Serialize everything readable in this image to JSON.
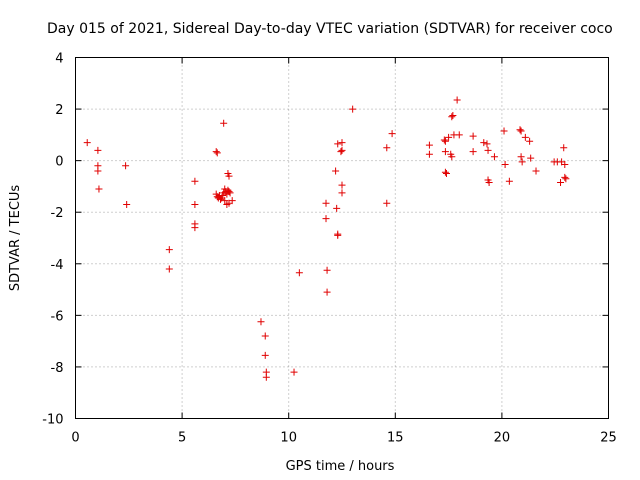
{
  "chart_data": {
    "type": "scatter",
    "title": "Day 015 of 2021, Sidereal Day-to-day VTEC variation (SDTVAR) for receiver coco",
    "xlabel": "GPS time / hours",
    "ylabel": "SDTVAR / TECUs",
    "xlim": [
      0,
      25
    ],
    "ylim": [
      -10,
      4
    ],
    "xticks": [
      0,
      5,
      10,
      15,
      20,
      25
    ],
    "yticks": [
      -10,
      -8,
      -6,
      -4,
      -2,
      0,
      2,
      4
    ],
    "grid": true,
    "marker": "+",
    "color": "#e00000",
    "points": [
      [
        0.55,
        0.7
      ],
      [
        1.05,
        0.4
      ],
      [
        1.05,
        -0.2
      ],
      [
        1.05,
        -0.4
      ],
      [
        1.1,
        -1.1
      ],
      [
        2.35,
        -0.2
      ],
      [
        2.4,
        -1.7
      ],
      [
        4.4,
        -3.45
      ],
      [
        4.4,
        -4.2
      ],
      [
        5.6,
        -0.8
      ],
      [
        5.6,
        -1.7
      ],
      [
        5.6,
        -2.45
      ],
      [
        5.6,
        -2.6
      ],
      [
        6.6,
        0.35
      ],
      [
        6.65,
        0.3
      ],
      [
        6.6,
        -1.3
      ],
      [
        6.65,
        -1.4
      ],
      [
        6.7,
        -1.45
      ],
      [
        6.75,
        -1.35
      ],
      [
        6.8,
        -1.5
      ],
      [
        6.85,
        -1.45
      ],
      [
        6.9,
        -1.35
      ],
      [
        6.95,
        -1.25
      ],
      [
        7.0,
        -1.1
      ],
      [
        7.05,
        -1.2
      ],
      [
        7.1,
        -1.3
      ],
      [
        7.15,
        -1.15
      ],
      [
        7.2,
        -1.2
      ],
      [
        7.25,
        -1.25
      ],
      [
        6.95,
        1.45
      ],
      [
        7.15,
        -0.5
      ],
      [
        7.2,
        -0.6
      ],
      [
        7.0,
        -1.55
      ],
      [
        7.1,
        -1.7
      ],
      [
        7.2,
        -1.65
      ],
      [
        7.35,
        -1.55
      ],
      [
        8.7,
        -6.25
      ],
      [
        8.9,
        -6.8
      ],
      [
        8.9,
        -7.55
      ],
      [
        8.95,
        -8.2
      ],
      [
        8.95,
        -8.4
      ],
      [
        10.25,
        -8.2
      ],
      [
        10.5,
        -4.35
      ],
      [
        11.75,
        -1.65
      ],
      [
        11.75,
        -2.25
      ],
      [
        11.8,
        -4.25
      ],
      [
        11.8,
        -5.1
      ],
      [
        12.2,
        -0.4
      ],
      [
        12.25,
        -1.85
      ],
      [
        12.3,
        -2.85
      ],
      [
        12.3,
        -2.9
      ],
      [
        12.3,
        0.65
      ],
      [
        12.45,
        0.35
      ],
      [
        12.5,
        0.4
      ],
      [
        12.5,
        0.7
      ],
      [
        12.5,
        -0.95
      ],
      [
        12.5,
        -1.25
      ],
      [
        13.0,
        2.0
      ],
      [
        14.6,
        0.5
      ],
      [
        14.6,
        -1.65
      ],
      [
        14.85,
        1.05
      ],
      [
        16.6,
        0.6
      ],
      [
        16.6,
        0.25
      ],
      [
        17.3,
        0.8
      ],
      [
        17.35,
        0.75
      ],
      [
        17.35,
        0.35
      ],
      [
        17.35,
        -0.45
      ],
      [
        17.4,
        -0.5
      ],
      [
        17.5,
        0.9
      ],
      [
        17.6,
        0.25
      ],
      [
        17.65,
        0.15
      ],
      [
        17.65,
        1.7
      ],
      [
        17.7,
        1.75
      ],
      [
        17.75,
        1.0
      ],
      [
        17.9,
        2.35
      ],
      [
        18.0,
        1.0
      ],
      [
        18.65,
        0.95
      ],
      [
        18.65,
        0.35
      ],
      [
        19.15,
        0.7
      ],
      [
        19.3,
        0.65
      ],
      [
        19.35,
        0.4
      ],
      [
        19.35,
        -0.75
      ],
      [
        19.4,
        -0.85
      ],
      [
        19.65,
        0.15
      ],
      [
        20.1,
        1.15
      ],
      [
        20.15,
        -0.15
      ],
      [
        20.35,
        -0.8
      ],
      [
        20.85,
        1.2
      ],
      [
        20.9,
        1.15
      ],
      [
        20.9,
        0.15
      ],
      [
        20.95,
        -0.05
      ],
      [
        21.1,
        0.9
      ],
      [
        21.3,
        0.75
      ],
      [
        21.35,
        0.1
      ],
      [
        21.6,
        -0.4
      ],
      [
        22.45,
        -0.05
      ],
      [
        22.6,
        -0.05
      ],
      [
        22.75,
        -0.85
      ],
      [
        22.8,
        -0.05
      ],
      [
        22.9,
        0.5
      ],
      [
        22.95,
        -0.65
      ],
      [
        22.95,
        -0.15
      ],
      [
        23.0,
        -0.7
      ]
    ]
  }
}
